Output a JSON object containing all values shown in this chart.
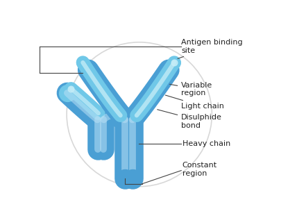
{
  "bg_color": "#ffffff",
  "heavy_color": "#4a9fd4",
  "heavy_dark": "#3080b8",
  "heavy_light": "#6fbce0",
  "heavy_highlight": "#b8e0f5",
  "light_color": "#70c8e8",
  "light_highlight": "#c8eef8",
  "circle_color": "#d8d8d8",
  "line_color": "#444444",
  "label_color": "#222222",
  "labels": {
    "antigen_binding_site": "Antigen binding\nsite",
    "variable_region": "Variable\nregion",
    "light_chain": "Light chain",
    "disulphide_bond": "Disulphide\nbond",
    "heavy_chain": "Heavy chain",
    "constant_region": "Constant\nregion"
  },
  "label_fontsize": 8.0
}
